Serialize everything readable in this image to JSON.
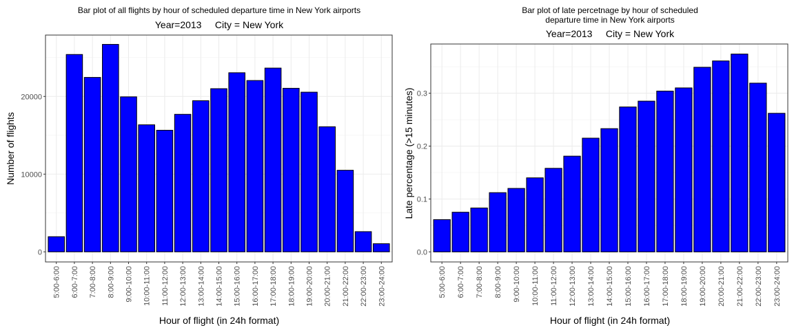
{
  "chart_data": [
    {
      "type": "bar",
      "title": "Bar plot of all flights by hour of scheduled departure time in New York airports",
      "subtitle": "Year=2013     City = New York",
      "xlabel": "Hour of flight (in 24h format)",
      "ylabel": "Number of flights",
      "bar_color": "#0000ff",
      "ylim": [
        -1300,
        27900
      ],
      "yticks": [
        0,
        10000,
        20000
      ],
      "ytick_labels": [
        "0",
        "10000",
        "20000"
      ],
      "grid": true,
      "categories": [
        "5:00-6:00",
        "6:00-7:00",
        "7:00-8:00",
        "8:00-9:00",
        "9:00-10:00",
        "10:00-11:00",
        "11:00-12:00",
        "12:00-13:00",
        "13:00-14:00",
        "14:00-15:00",
        "15:00-16:00",
        "16:00-17:00",
        "17:00-18:00",
        "18:00-19:00",
        "19:00-20:00",
        "20:00-21:00",
        "21:00-22:00",
        "22:00-23:00",
        "23:00-24:00"
      ],
      "values": [
        1950,
        25400,
        22450,
        26700,
        19950,
        16350,
        15650,
        17700,
        19450,
        21000,
        23050,
        22050,
        23650,
        21050,
        20550,
        16100,
        10500,
        2600,
        1050
      ]
    },
    {
      "type": "bar",
      "title": "Bar plot of late percetnage by hour of scheduled",
      "title_line2": "departure time in New York airports",
      "subtitle": "Year=2013     City = New York",
      "xlabel": "Hour of flight (in 24h format)",
      "ylabel": "Late percentage (>15 minutes)",
      "bar_color": "#0000ff",
      "ylim": [
        -0.019,
        0.393
      ],
      "yticks": [
        0,
        0.1,
        0.2,
        0.3
      ],
      "ytick_labels": [
        "0.0",
        "0.1",
        "0.2",
        "0.3"
      ],
      "grid": true,
      "categories": [
        "5:00-6:00",
        "6:00-7:00",
        "7:00-8:00",
        "8:00-9:00",
        "9:00-10:00",
        "10:00-11:00",
        "11:00-12:00",
        "12:00-13:00",
        "13:00-14:00",
        "14:00-15:00",
        "15:00-16:00",
        "16:00-17:00",
        "17:00-18:00",
        "18:00-19:00",
        "19:00-20:00",
        "20:00-21:00",
        "21:00-22:00",
        "22:00-23:00",
        "23:00-24:00"
      ],
      "values": [
        0.061,
        0.075,
        0.083,
        0.112,
        0.12,
        0.14,
        0.158,
        0.181,
        0.215,
        0.233,
        0.274,
        0.285,
        0.304,
        0.31,
        0.349,
        0.361,
        0.374,
        0.319,
        0.262
      ]
    }
  ]
}
